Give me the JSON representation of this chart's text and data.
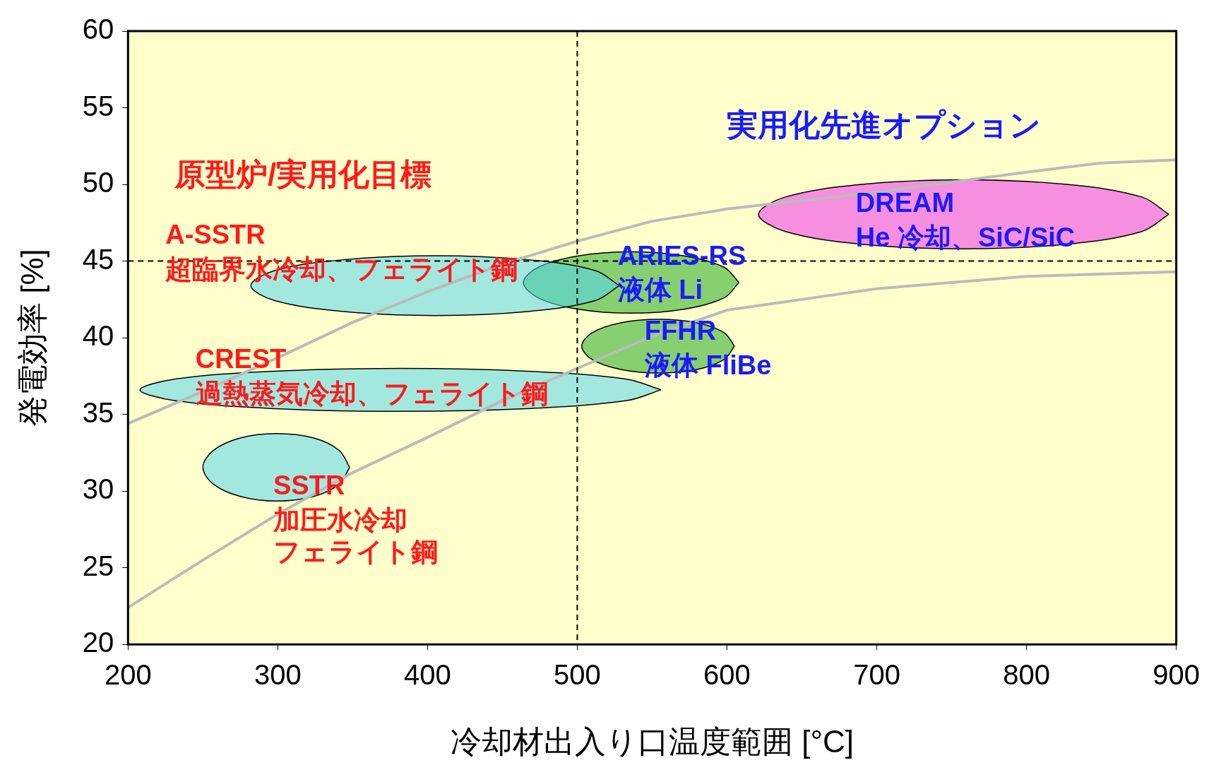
{
  "chart_data": {
    "type": "line",
    "xlabel": "冷却材出入り口温度範囲 [°C]",
    "ylabel": "発電効率 [%]",
    "xlim": [
      200,
      900
    ],
    "xticks": [
      200,
      300,
      400,
      500,
      600,
      700,
      800,
      900
    ],
    "ylim": [
      20,
      60
    ],
    "yticks": [
      20,
      25,
      30,
      35,
      40,
      45,
      50,
      55,
      60
    ],
    "legend": false,
    "series": [
      {
        "color": "#bbbbbb",
        "x": [
          200,
          250,
          300,
          350,
          400,
          450,
          500,
          550,
          600,
          700,
          800,
          850,
          900
        ],
        "values": [
          34.4,
          36.5,
          38.7,
          41,
          43,
          44.8,
          46.3,
          47.6,
          48.4,
          49.5,
          50.8,
          51.4,
          51.6
        ]
      },
      {
        "color": "#bbbbbb",
        "x": [
          200,
          250,
          300,
          350,
          400,
          450,
          500,
          550,
          600,
          700,
          800,
          900
        ],
        "values": [
          22.4,
          25.5,
          28.5,
          31.2,
          33.5,
          35.9,
          38,
          40.1,
          41.8,
          43.2,
          44,
          44.3
        ]
      },
      {
        "type": "area",
        "color": "#55d5ee",
        "x": [
          528,
          512,
          467,
          405,
          344,
          298,
          282,
          298,
          344,
          405,
          467,
          512,
          528
        ],
        "values": [
          43.4,
          44.38,
          45.09,
          45.35,
          45.09,
          44.38,
          43.4,
          42.42,
          41.71,
          41.45,
          41.71,
          42.42,
          43.4
        ]
      },
      {
        "type": "area",
        "color": "#22aa22",
        "x": [
          608,
          598,
          572,
          536,
          500,
          474,
          464,
          474,
          500,
          536,
          572,
          598,
          608
        ],
        "values": [
          43.6,
          44.6,
          45.33,
          45.6,
          45.33,
          44.6,
          43.6,
          42.6,
          41.87,
          41.6,
          41.87,
          42.6,
          43.6
        ]
      },
      {
        "type": "area",
        "color": "#22aa22",
        "x": [
          605,
          598,
          580,
          554,
          529,
          510,
          503,
          510,
          529,
          554,
          580,
          598,
          605
        ],
        "values": [
          39.45,
          40.33,
          40.97,
          41.2,
          40.97,
          40.33,
          39.45,
          38.58,
          37.93,
          37.7,
          37.93,
          38.58,
          39.45
        ]
      },
      {
        "type": "area",
        "color": "#55d5ee",
        "x": [
          556,
          533,
          469,
          382,
          295,
          231,
          208,
          231,
          295,
          382,
          469,
          533,
          556
        ],
        "values": [
          36.6,
          37.3,
          37.81,
          38,
          37.81,
          37.3,
          36.6,
          35.9,
          35.39,
          35.2,
          35.39,
          35.9,
          36.6
        ]
      },
      {
        "type": "area",
        "color": "#55d5ee",
        "x": [
          348,
          341,
          324,
          299,
          275,
          257,
          250,
          257,
          275,
          299,
          324,
          341,
          348
        ],
        "values": [
          31.55,
          32.65,
          33.46,
          33.75,
          33.46,
          32.65,
          31.55,
          30.45,
          29.65,
          29.35,
          29.65,
          30.45,
          31.55
        ]
      },
      {
        "type": "area",
        "color": "#ee33ee",
        "x": [
          895,
          877,
          827,
          758,
          690,
          639,
          621,
          639,
          690,
          758,
          827,
          877,
          895
        ],
        "values": [
          48.05,
          49.18,
          50,
          50.3,
          50,
          49.18,
          48.05,
          46.93,
          46.1,
          45.8,
          46.1,
          46.93,
          48.05
        ]
      }
    ],
    "ref_lines": [
      {
        "axis": "x",
        "value": 500,
        "line_style": "dashed"
      },
      {
        "axis": "y",
        "value": 45,
        "line_style": "dashed"
      }
    ],
    "annotations": [
      "原型炉/実用化目標",
      "実用化先進オプション",
      "A-SSTR",
      "超臨界水冷却、フェライト鋼",
      "CREST",
      "過熱蒸気冷却、フェライト鋼",
      "SSTR",
      "加圧水冷却フェライト鋼",
      "ARIES-RS",
      "液体 Li",
      "FFHR",
      "液体 FliBe",
      "DREAM",
      "He 冷却、SiC/SiC"
    ]
  }
}
